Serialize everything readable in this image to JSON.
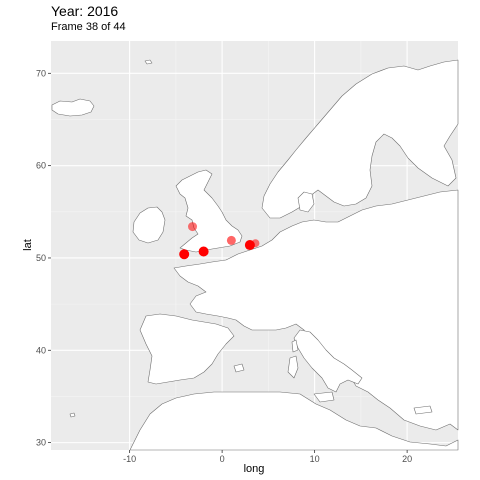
{
  "header": {
    "title": "Year: 2016",
    "subtitle": "Frame 38 of 44"
  },
  "colors": {
    "panel": "#ebebeb",
    "grid": "#ffffff",
    "land": "#ffffff",
    "border": "#6e6e6e",
    "point": "#ff0000"
  },
  "chart_data": {
    "type": "scatter",
    "xlabel": "long",
    "ylabel": "lat",
    "xlim": [
      -18.5,
      25.5
    ],
    "ylim": [
      29.2,
      73.5
    ],
    "xticks": [
      -10,
      0,
      10,
      20
    ],
    "yticks": [
      30,
      40,
      50,
      60,
      70
    ],
    "xtick_labels": [
      "-10",
      "0",
      "10",
      "20"
    ],
    "ytick_labels": [
      "30",
      "40",
      "50",
      "60",
      "70"
    ],
    "grid": true,
    "points": [
      {
        "long": -4.1,
        "lat": 50.4,
        "alpha": 1.0,
        "size": 5
      },
      {
        "long": -2.0,
        "lat": 50.7,
        "alpha": 1.0,
        "size": 5
      },
      {
        "long": -3.2,
        "lat": 53.4,
        "alpha": 0.55,
        "size": 4.5
      },
      {
        "long": 1.0,
        "lat": 51.9,
        "alpha": 0.6,
        "size": 4.5
      },
      {
        "long": 3.0,
        "lat": 51.4,
        "alpha": 1.0,
        "size": 5
      },
      {
        "long": 3.6,
        "lat": 51.6,
        "alpha": 0.55,
        "size": 4
      }
    ]
  }
}
